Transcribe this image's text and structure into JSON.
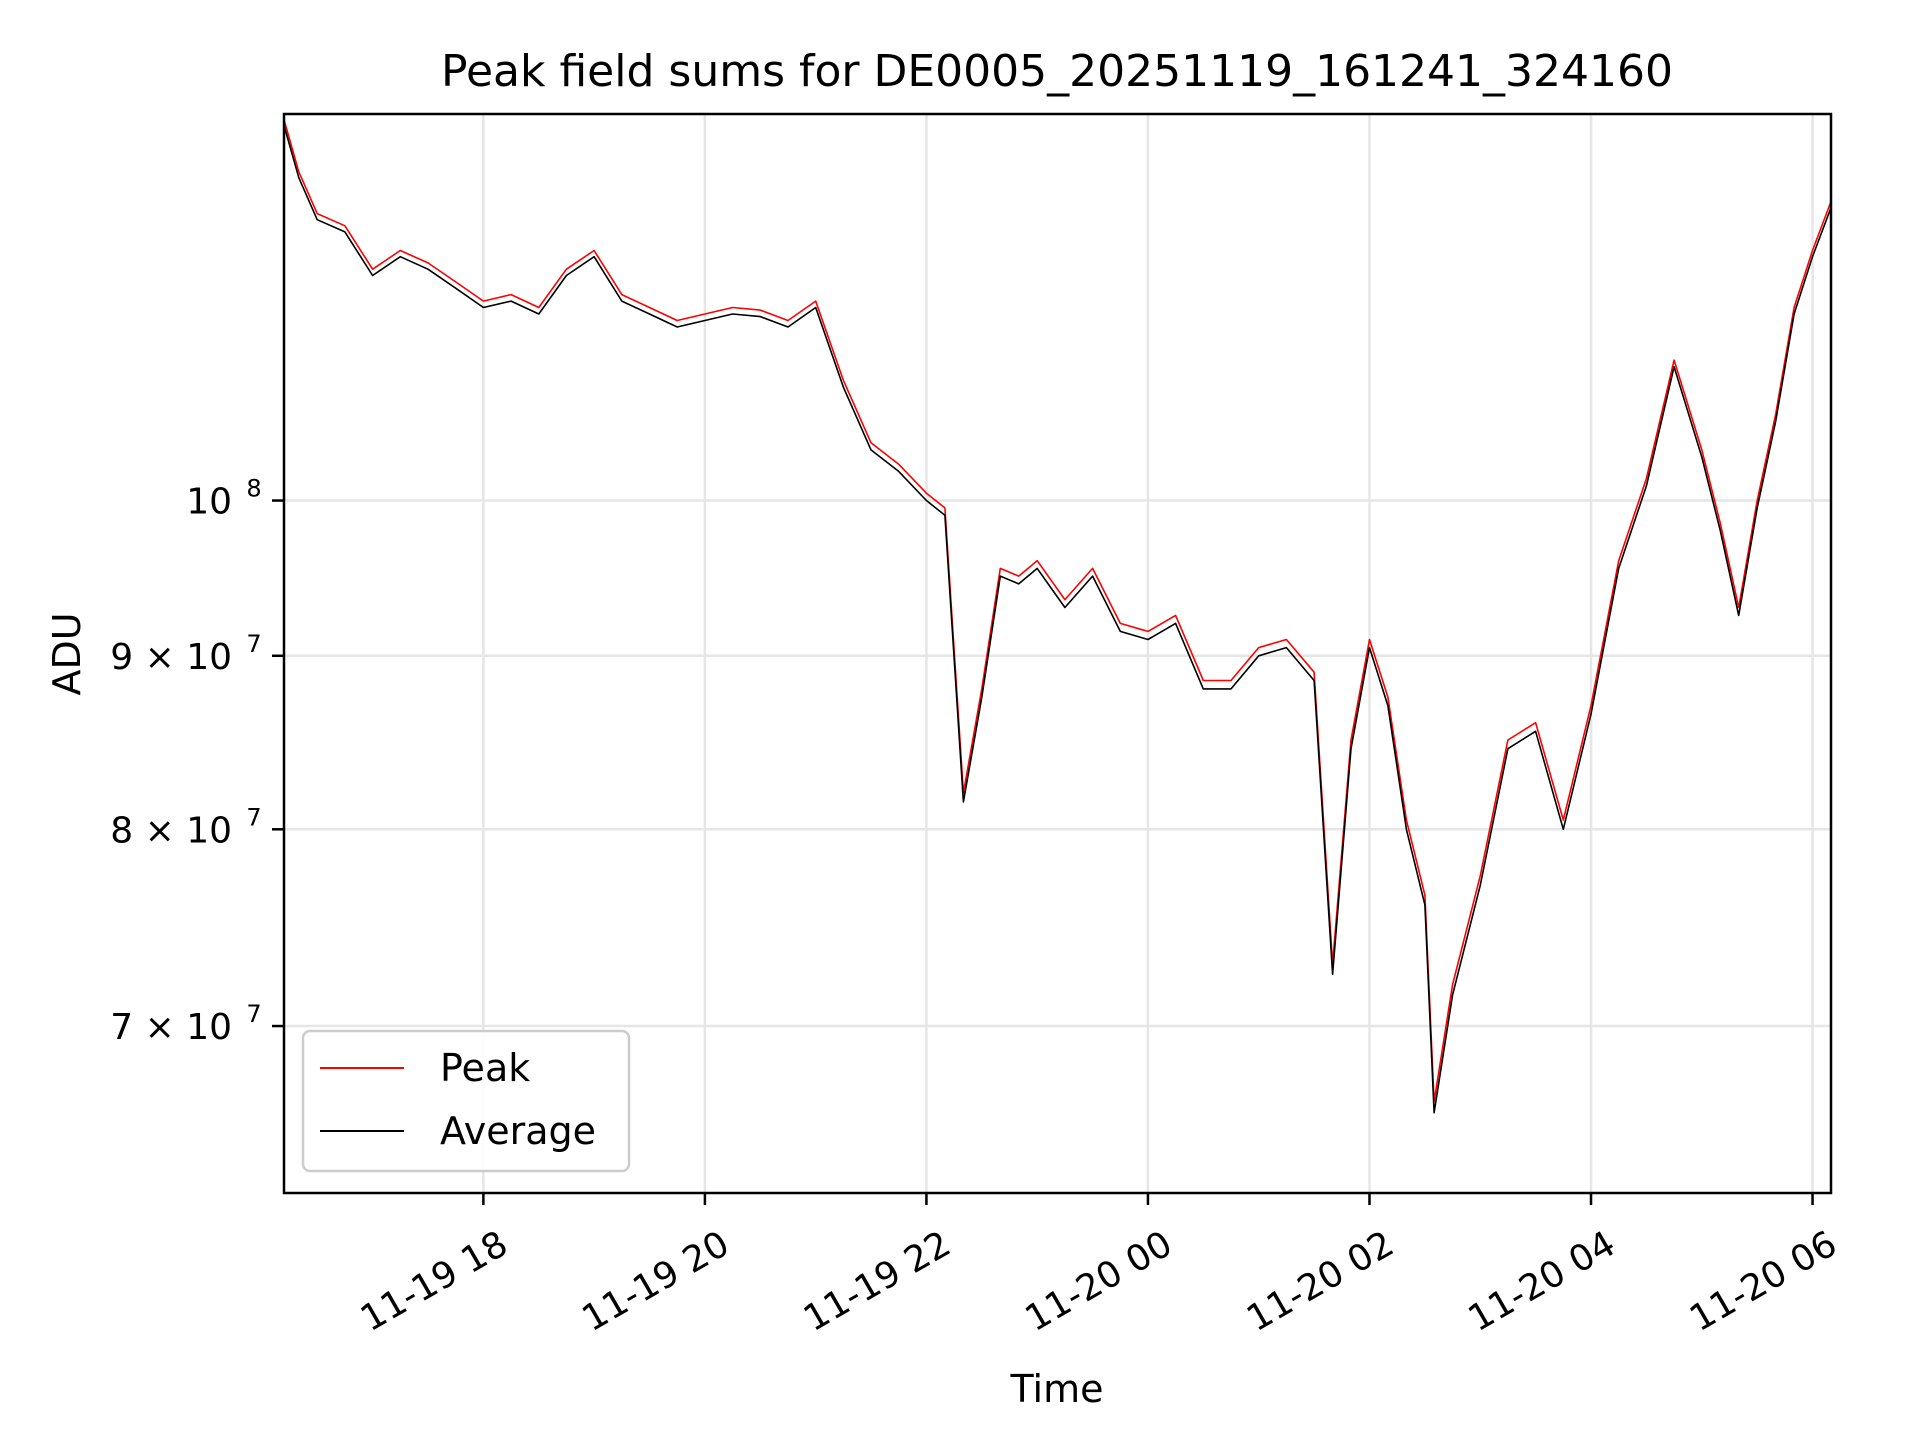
{
  "chart_data": {
    "type": "line",
    "title": "Peak field sums for DE0005_20251119_161241_324160",
    "xlabel": "Time",
    "ylabel": "ADU",
    "yscale": "log",
    "x_unit": "datetime",
    "xlim": [
      "2025-11-19 16:12",
      "2025-11-20 06:10"
    ],
    "ylim": [
      62500000,
      130000000
    ],
    "grid": true,
    "legend_position": "lower-left",
    "x_ticks": [
      {
        "value": "2025-11-19 18:00",
        "label": "11-19 18"
      },
      {
        "value": "2025-11-19 20:00",
        "label": "11-19 20"
      },
      {
        "value": "2025-11-19 22:00",
        "label": "11-19 22"
      },
      {
        "value": "2025-11-20 00:00",
        "label": "11-20 00"
      },
      {
        "value": "2025-11-20 02:00",
        "label": "11-20 02"
      },
      {
        "value": "2025-11-20 04:00",
        "label": "11-20 04"
      },
      {
        "value": "2025-11-20 06:00",
        "label": "11-20 06"
      }
    ],
    "y_ticks": [
      {
        "value": 70000000,
        "label": "7 × 10",
        "exp": "7"
      },
      {
        "value": 80000000,
        "label": "8 × 10",
        "exp": "7"
      },
      {
        "value": 90000000,
        "label": "9 × 10",
        "exp": "7"
      },
      {
        "value": 100000000,
        "label": "10",
        "exp": "8"
      }
    ],
    "series": [
      {
        "name": "Peak",
        "color": "#ff0000",
        "x": [
          "2025-11-19 16:12",
          "2025-11-19 16:20",
          "2025-11-19 16:30",
          "2025-11-19 16:45",
          "2025-11-19 17:00",
          "2025-11-19 17:15",
          "2025-11-19 17:30",
          "2025-11-19 17:45",
          "2025-11-19 18:00",
          "2025-11-19 18:15",
          "2025-11-19 18:30",
          "2025-11-19 18:45",
          "2025-11-19 19:00",
          "2025-11-19 19:15",
          "2025-11-19 19:30",
          "2025-11-19 19:45",
          "2025-11-19 20:00",
          "2025-11-19 20:15",
          "2025-11-19 20:30",
          "2025-11-19 20:45",
          "2025-11-19 21:00",
          "2025-11-19 21:15",
          "2025-11-19 21:30",
          "2025-11-19 21:45",
          "2025-11-19 22:00",
          "2025-11-19 22:10",
          "2025-11-19 22:20",
          "2025-11-19 22:30",
          "2025-11-19 22:40",
          "2025-11-19 22:50",
          "2025-11-19 23:00",
          "2025-11-19 23:15",
          "2025-11-19 23:30",
          "2025-11-19 23:45",
          "2025-11-20 00:00",
          "2025-11-20 00:15",
          "2025-11-20 00:30",
          "2025-11-20 00:45",
          "2025-11-20 01:00",
          "2025-11-20 01:15",
          "2025-11-20 01:30",
          "2025-11-20 01:40",
          "2025-11-20 01:50",
          "2025-11-20 02:00",
          "2025-11-20 02:10",
          "2025-11-20 02:20",
          "2025-11-20 02:30",
          "2025-11-20 02:35",
          "2025-11-20 02:45",
          "2025-11-20 03:00",
          "2025-11-20 03:15",
          "2025-11-20 03:30",
          "2025-11-20 03:45",
          "2025-11-20 04:00",
          "2025-11-20 04:15",
          "2025-11-20 04:30",
          "2025-11-20 04:45",
          "2025-11-20 05:00",
          "2025-11-20 05:10",
          "2025-11-20 05:20",
          "2025-11-20 05:30",
          "2025-11-20 05:40",
          "2025-11-20 05:50",
          "2025-11-20 06:00",
          "2025-11-20 06:10"
        ],
        "values": [
          129500000,
          125000000,
          121500000,
          120500000,
          117000000,
          118500000,
          117500000,
          116000000,
          114500000,
          115000000,
          114000000,
          117000000,
          118500000,
          115000000,
          114000000,
          113000000,
          113500000,
          114000000,
          113800000,
          113000000,
          114500000,
          108500000,
          104000000,
          102500000,
          100500000,
          99500000,
          82000000,
          88000000,
          95500000,
          95000000,
          96000000,
          93500000,
          95500000,
          92000000,
          91500000,
          92500000,
          88500000,
          88500000,
          90500000,
          91000000,
          89000000,
          73000000,
          85000000,
          91000000,
          87500000,
          80500000,
          76500000,
          66500000,
          72000000,
          77500000,
          85000000,
          86000000,
          80500000,
          87000000,
          96000000,
          101500000,
          110000000,
          103500000,
          98500000,
          93000000,
          100000000,
          106000000,
          114000000,
          118500000,
          122500000
        ]
      },
      {
        "name": "Average",
        "color": "#000000",
        "x": [
          "2025-11-19 16:12",
          "2025-11-19 16:20",
          "2025-11-19 16:30",
          "2025-11-19 16:45",
          "2025-11-19 17:00",
          "2025-11-19 17:15",
          "2025-11-19 17:30",
          "2025-11-19 17:45",
          "2025-11-19 18:00",
          "2025-11-19 18:15",
          "2025-11-19 18:30",
          "2025-11-19 18:45",
          "2025-11-19 19:00",
          "2025-11-19 19:15",
          "2025-11-19 19:30",
          "2025-11-19 19:45",
          "2025-11-19 20:00",
          "2025-11-19 20:15",
          "2025-11-19 20:30",
          "2025-11-19 20:45",
          "2025-11-19 21:00",
          "2025-11-19 21:15",
          "2025-11-19 21:30",
          "2025-11-19 21:45",
          "2025-11-19 22:00",
          "2025-11-19 22:10",
          "2025-11-19 22:20",
          "2025-11-19 22:30",
          "2025-11-19 22:40",
          "2025-11-19 22:50",
          "2025-11-19 23:00",
          "2025-11-19 23:15",
          "2025-11-19 23:30",
          "2025-11-19 23:45",
          "2025-11-20 00:00",
          "2025-11-20 00:15",
          "2025-11-20 00:30",
          "2025-11-20 00:45",
          "2025-11-20 01:00",
          "2025-11-20 01:15",
          "2025-11-20 01:30",
          "2025-11-20 01:40",
          "2025-11-20 01:50",
          "2025-11-20 02:00",
          "2025-11-20 02:10",
          "2025-11-20 02:20",
          "2025-11-20 02:30",
          "2025-11-20 02:35",
          "2025-11-20 02:45",
          "2025-11-20 03:00",
          "2025-11-20 03:15",
          "2025-11-20 03:30",
          "2025-11-20 03:45",
          "2025-11-20 04:00",
          "2025-11-20 04:15",
          "2025-11-20 04:30",
          "2025-11-20 04:45",
          "2025-11-20 05:00",
          "2025-11-20 05:10",
          "2025-11-20 05:20",
          "2025-11-20 05:30",
          "2025-11-20 05:40",
          "2025-11-20 05:50",
          "2025-11-20 06:00",
          "2025-11-20 06:10"
        ],
        "values": [
          129000000,
          124500000,
          121000000,
          120000000,
          116500000,
          118000000,
          117000000,
          115500000,
          114000000,
          114500000,
          113500000,
          116500000,
          118000000,
          114500000,
          113500000,
          112500000,
          113000000,
          113500000,
          113300000,
          112500000,
          114000000,
          108000000,
          103500000,
          102000000,
          100000000,
          99000000,
          81500000,
          87500000,
          95000000,
          94500000,
          95500000,
          93000000,
          95000000,
          91500000,
          91000000,
          92000000,
          88000000,
          88000000,
          90000000,
          90500000,
          88500000,
          72500000,
          84500000,
          90500000,
          87000000,
          80000000,
          76000000,
          66000000,
          71500000,
          77000000,
          84500000,
          85500000,
          80000000,
          86500000,
          95500000,
          101000000,
          109500000,
          103000000,
          98000000,
          92500000,
          99500000,
          105500000,
          113500000,
          118000000,
          122000000
        ]
      }
    ]
  }
}
